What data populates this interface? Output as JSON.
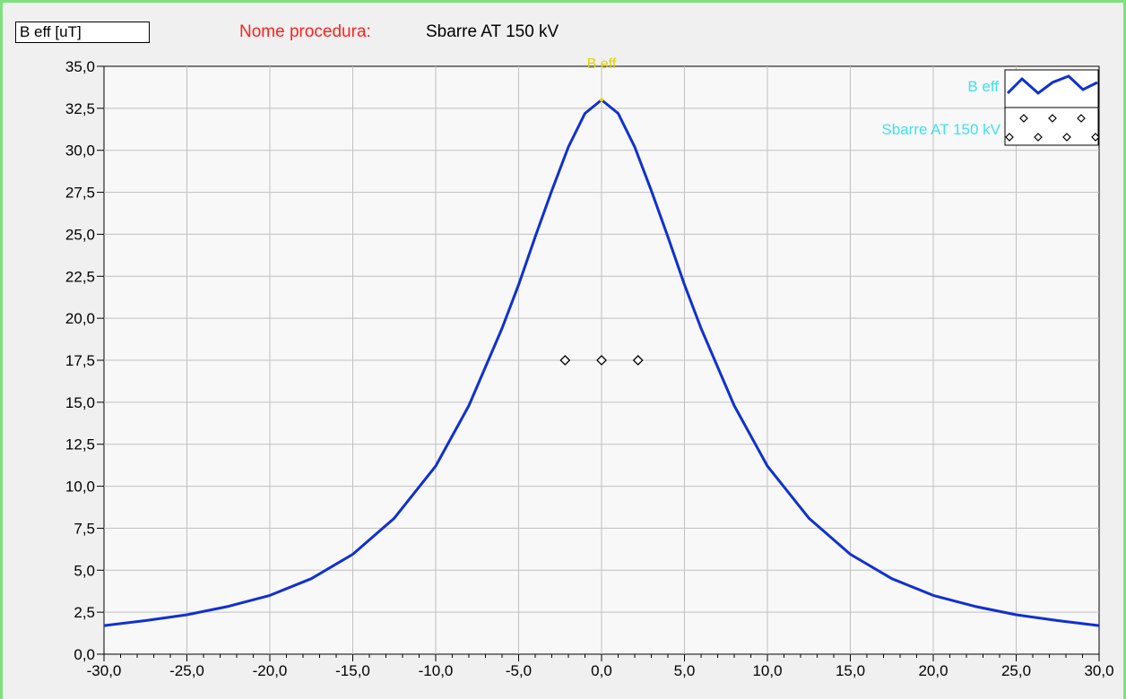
{
  "header": {
    "unit_label": "B eff [uT]",
    "procedure_label": "Nome procedura:",
    "procedure_name": "Sbarre AT 150 kV"
  },
  "colors": {
    "frame_border": "#7ee07e",
    "curve": "#1030d0",
    "legend_text": "#40e0f0",
    "procedure_label": "#ff2020",
    "peak_label": "#e0d000",
    "plot_bg": "#f8f8f8",
    "grid": "#c0c0c0"
  },
  "legend": {
    "placement": "top-right",
    "items": [
      {
        "label": "B eff",
        "symbol": "line-icon"
      },
      {
        "label": "Sbarre AT 150 kV",
        "symbol": "diamond-markers-icon"
      }
    ]
  },
  "chart_data": {
    "type": "line",
    "title": "",
    "xlabel": "",
    "ylabel": "",
    "xlim": [
      -30,
      30
    ],
    "ylim": [
      0,
      35
    ],
    "grid": true,
    "x_ticks": [
      "-30,0",
      "-25,0",
      "-20,0",
      "-15,0",
      "-10,0",
      "-5,0",
      "0,0",
      "5,0",
      "10,0",
      "15,0",
      "20,0",
      "25,0",
      "30,0"
    ],
    "y_ticks": [
      "0,0",
      "2,5",
      "5,0",
      "7,5",
      "10,0",
      "12,5",
      "15,0",
      "17,5",
      "20,0",
      "22,5",
      "25,0",
      "27,5",
      "30,0",
      "32,5",
      "35,0"
    ],
    "series": [
      {
        "name": "B eff",
        "style": "line",
        "x": [
          -30,
          -27.5,
          -25,
          -22.5,
          -20,
          -17.5,
          -15,
          -12.5,
          -10,
          -8,
          -6,
          -5,
          -4,
          -3,
          -2,
          -1,
          0,
          1,
          2,
          3,
          4,
          5,
          6,
          8,
          10,
          12.5,
          15,
          17.5,
          20,
          22.5,
          25,
          27.5,
          30
        ],
        "y": [
          1.7,
          2.0,
          2.35,
          2.85,
          3.5,
          4.5,
          5.95,
          8.1,
          11.2,
          14.8,
          19.4,
          22.0,
          24.85,
          27.6,
          30.2,
          32.2,
          33.0,
          32.2,
          30.2,
          27.6,
          24.85,
          22.0,
          19.4,
          14.8,
          11.2,
          8.1,
          5.95,
          4.5,
          3.5,
          2.85,
          2.35,
          2.0,
          1.7
        ],
        "peak_label": "B eff"
      },
      {
        "name": "Sbarre AT 150 kV",
        "style": "markers",
        "x": [
          -2.2,
          0,
          2.2
        ],
        "y": [
          17.5,
          17.5,
          17.5
        ]
      }
    ]
  }
}
